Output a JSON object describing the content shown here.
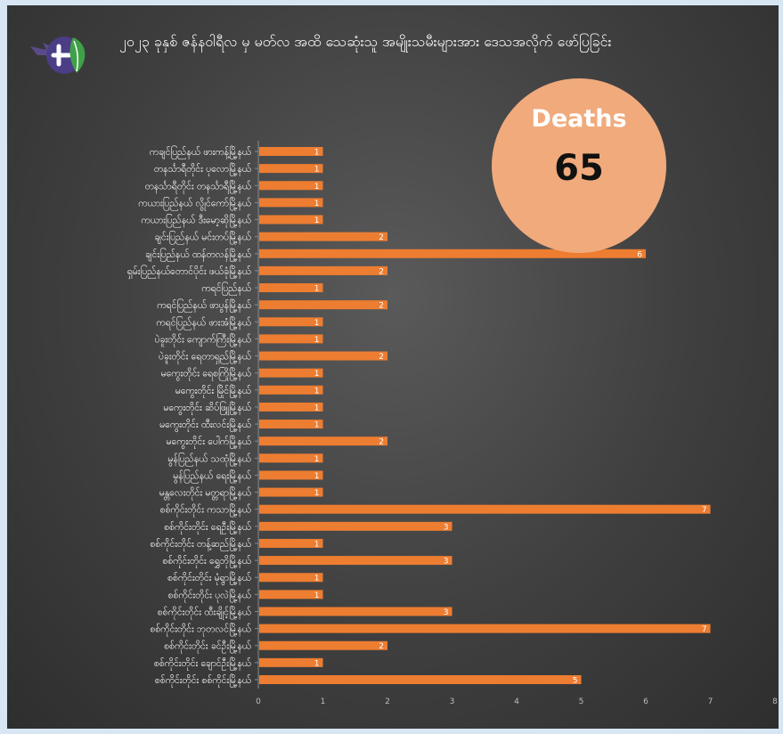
{
  "title": "၂၀၂၃ ခုနှစ် ဇန်နဝါရီလ မှ မတ်လ အထိ သေဆုံးသူ အမျိုးသမီးများအား ဒေသအလိုက် ဖော်ပြခြင်း",
  "badge": {
    "label": "Deaths",
    "value": "65"
  },
  "colors": {
    "bar": "#ed7d31",
    "badge": "#f0aa7c",
    "panel": "#3f3f3f"
  },
  "logo_icon": "dove-leaf-logo",
  "chart_data": {
    "type": "bar",
    "orientation": "horizontal",
    "title": "",
    "xlabel": "",
    "ylabel": "",
    "xlim": [
      0,
      8
    ],
    "xticks": [
      "0",
      "1",
      "2",
      "3",
      "4",
      "5",
      "6",
      "7",
      "8"
    ],
    "grid": false,
    "legend": "none",
    "data_labels": true,
    "categories": [
      "ကချင်ပြည်နယ် ဖားကန့်မြို့နယ်",
      "တနင်္သာရီတိုင်း ပုလောမြို့နယ်",
      "တနင်္သာရီတိုင်း တနင်္သာရီမြို့နယ်",
      "ကယားပြည်နယ် လွိုင်ကော်မြို့နယ်",
      "ကယားပြည်နယ် ဒီးမော့ဆိုမြို့နယ်",
      "ချင်းပြည်နယ် မင်းတပ်မြို့နယ်",
      "ချင်းပြည်နယ် ထန်တလန်မြို့နယ်",
      "ရှမ်းပြည်နယ်တောင်ပိုင်း ဖယ်ခုံမြို့နယ်",
      "ကရင်ပြည်နယ်",
      "ကရင်ပြည်နယ် ဖာပွန်မြို့နယ်",
      "ကရင်ပြည်နယ် ဖားအံမြို့နယ်",
      "ပဲခူးတိုင်း ကျောက်ကြီးမြို့နယ်",
      "ပဲခူးတိုင်း ရေတာရှည်မြို့နယ်",
      "မကွေးတိုင်း ရေစကြိုမြို့နယ်",
      "မကွေးတိုင်း မြိုင်မြို့နယ်",
      "မကွေးတိုင်း ဆိပ်ဖြူမြို့နယ်",
      "မကွေးတိုင်း ထီးလင်းမြို့နယ်",
      "မကွေးတိုင်း ပေါက်မြို့နယ်",
      "မွန်ပြည်နယ် သထုံမြို့နယ်",
      "မွန်ပြည်နယ် ရေးမြို့နယ်",
      "မန္တလေးတိုင်း မတ္တရာမြို့နယ်",
      "စစ်ကိုင်းတိုင်း ကသာမြို့နယ်",
      "စစ်ကိုင်းတိုင်း ရေဦးမြို့နယ်",
      "စစ်ကိုင်းတိုင်း တန့်ဆည်မြို့နယ်",
      "စစ်ကိုင်းတိုင်း ရွှေဘိုမြို့နယ်",
      "စစ်ကိုင်းတိုင်း မုံရွာမြို့နယ်",
      "စစ်ကိုင်းတိုင်း ပုလဲမြို့နယ်",
      "စစ်ကိုင်းတိုင်း ထီးချိုင့်မြို့နယ်",
      "စစ်ကိုင်းတိုင်း ဘုတလင်မြို့နယ်",
      "စစ်ကိုင်းတိုင်း ခင်ဦးမြို့နယ်",
      "စစ်ကိုင်းတိုင်း ချောင်ဦးမြို့နယ်",
      "စစ်ကိုင်းတိုင်း စစ်ကိုင်းမြို့နယ်"
    ],
    "values": [
      1,
      1,
      1,
      1,
      1,
      2,
      6,
      2,
      1,
      2,
      1,
      1,
      2,
      1,
      1,
      1,
      1,
      2,
      1,
      1,
      1,
      7,
      3,
      1,
      3,
      1,
      1,
      3,
      7,
      2,
      1,
      5
    ]
  }
}
